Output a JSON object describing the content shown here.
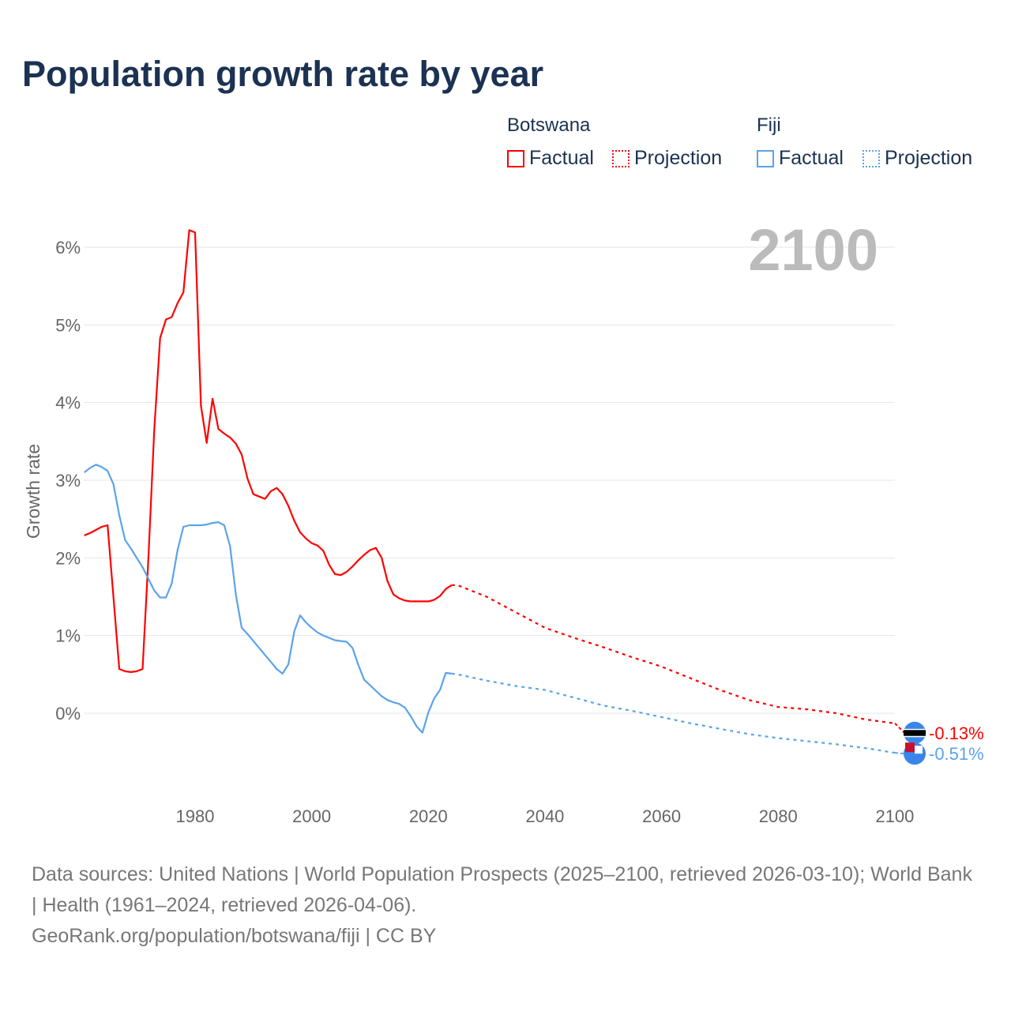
{
  "title": "Population growth rate by year",
  "legend": {
    "groups": [
      {
        "name": "Botswana",
        "items": [
          "Factual",
          "Projection"
        ],
        "color": "#ff0000"
      },
      {
        "name": "Fiji",
        "items": [
          "Factual",
          "Projection"
        ],
        "color": "#5ba3ea"
      }
    ]
  },
  "chart_data": {
    "type": "line",
    "title": "Population growth rate by year",
    "ylabel": "Growth rate",
    "xlabel": "",
    "year_display": "2100",
    "xlim": [
      1961,
      2100
    ],
    "ylim": [
      -1,
      6.3
    ],
    "x_ticks": [
      1980,
      2000,
      2020,
      2040,
      2060,
      2080,
      2100
    ],
    "y_ticks": [
      0,
      1,
      2,
      3,
      4,
      5,
      6
    ],
    "y_tick_labels": [
      "0%",
      "1%",
      "2%",
      "3%",
      "4%",
      "5%",
      "6%"
    ],
    "grid": true,
    "series": [
      {
        "name": "Botswana",
        "kind": "Factual",
        "color": "#ff0000",
        "x": [
          1961,
          1962,
          1963,
          1964,
          1965,
          1966,
          1967,
          1968,
          1969,
          1970,
          1971,
          1972,
          1973,
          1974,
          1975,
          1976,
          1977,
          1978,
          1979,
          1980,
          1981,
          1982,
          1983,
          1984,
          1985,
          1986,
          1987,
          1988,
          1989,
          1990,
          1991,
          1992,
          1993,
          1994,
          1995,
          1996,
          1997,
          1998,
          1999,
          2000,
          2001,
          2002,
          2003,
          2004,
          2005,
          2006,
          2007,
          2008,
          2009,
          2010,
          2011,
          2012,
          2013,
          2014,
          2015,
          2016,
          2017,
          2018,
          2019,
          2020,
          2021,
          2022,
          2023,
          2024
        ],
        "y": [
          2.29,
          2.32,
          2.36,
          2.4,
          2.42,
          1.5,
          0.57,
          0.54,
          0.53,
          0.54,
          0.57,
          2.0,
          3.65,
          4.83,
          5.07,
          5.1,
          5.28,
          5.42,
          6.22,
          6.19,
          3.96,
          3.48,
          4.05,
          3.66,
          3.6,
          3.55,
          3.47,
          3.33,
          3.02,
          2.82,
          2.79,
          2.76,
          2.86,
          2.9,
          2.82,
          2.67,
          2.48,
          2.33,
          2.25,
          2.19,
          2.16,
          2.09,
          1.91,
          1.79,
          1.78,
          1.82,
          1.89,
          1.97,
          2.04,
          2.1,
          2.13,
          2.0,
          1.7,
          1.53,
          1.48,
          1.45,
          1.44,
          1.44,
          1.44,
          1.44,
          1.46,
          1.51,
          1.6,
          1.65
        ]
      },
      {
        "name": "Botswana",
        "kind": "Projection",
        "color": "#ff0000",
        "x": [
          2024,
          2025,
          2030,
          2035,
          2040,
          2045,
          2050,
          2055,
          2060,
          2065,
          2070,
          2075,
          2080,
          2085,
          2090,
          2095,
          2100
        ],
        "y": [
          1.65,
          1.65,
          1.5,
          1.3,
          1.1,
          0.97,
          0.85,
          0.72,
          0.6,
          0.45,
          0.3,
          0.17,
          0.08,
          0.05,
          0.0,
          -0.08,
          -0.13
        ]
      },
      {
        "name": "Fiji",
        "kind": "Factual",
        "color": "#5ba3ea",
        "x": [
          1961,
          1962,
          1963,
          1964,
          1965,
          1966,
          1967,
          1968,
          1969,
          1970,
          1971,
          1972,
          1973,
          1974,
          1975,
          1976,
          1977,
          1978,
          1979,
          1980,
          1981,
          1982,
          1983,
          1984,
          1985,
          1986,
          1987,
          1988,
          1989,
          1990,
          1991,
          1992,
          1993,
          1994,
          1995,
          1996,
          1997,
          1998,
          1999,
          2000,
          2001,
          2002,
          2003,
          2004,
          2005,
          2006,
          2007,
          2008,
          2009,
          2010,
          2011,
          2012,
          2013,
          2014,
          2015,
          2016,
          2017,
          2018,
          2019,
          2020,
          2021,
          2022,
          2023,
          2024
        ],
        "y": [
          3.1,
          3.16,
          3.2,
          3.17,
          3.12,
          2.95,
          2.55,
          2.23,
          2.12,
          2.0,
          1.88,
          1.73,
          1.58,
          1.49,
          1.49,
          1.67,
          2.1,
          2.4,
          2.42,
          2.42,
          2.42,
          2.43,
          2.45,
          2.46,
          2.42,
          2.15,
          1.52,
          1.1,
          1.02,
          0.93,
          0.84,
          0.75,
          0.66,
          0.57,
          0.51,
          0.63,
          1.05,
          1.26,
          1.17,
          1.1,
          1.04,
          1.0,
          0.97,
          0.94,
          0.93,
          0.92,
          0.84,
          0.62,
          0.43,
          0.36,
          0.29,
          0.22,
          0.17,
          0.14,
          0.12,
          0.07,
          -0.04,
          -0.17,
          -0.25,
          0.01,
          0.19,
          0.3,
          0.52,
          0.51
        ]
      },
      {
        "name": "Fiji",
        "kind": "Projection",
        "color": "#5ba3ea",
        "x": [
          2024,
          2025,
          2030,
          2035,
          2040,
          2045,
          2050,
          2055,
          2060,
          2065,
          2070,
          2075,
          2080,
          2085,
          2090,
          2095,
          2100
        ],
        "y": [
          0.51,
          0.5,
          0.42,
          0.35,
          0.3,
          0.2,
          0.1,
          0.03,
          -0.05,
          -0.13,
          -0.2,
          -0.27,
          -0.32,
          -0.36,
          -0.4,
          -0.45,
          -0.51
        ]
      }
    ],
    "end_labels": [
      {
        "name": "Botswana",
        "value": -0.13,
        "label": "-0.13%",
        "color": "#ff0000"
      },
      {
        "name": "Fiji",
        "value": -0.51,
        "label": "-0.51%",
        "color": "#5ba3ea"
      }
    ]
  },
  "footer": {
    "sources": "Data sources: United Nations | World Population Prospects (2025–2100, retrieved 2026-03-10); World Bank | Health (1961–2024, retrieved 2026-04-06).",
    "credit": "GeoRank.org/population/botswana/fiji | CC BY"
  }
}
